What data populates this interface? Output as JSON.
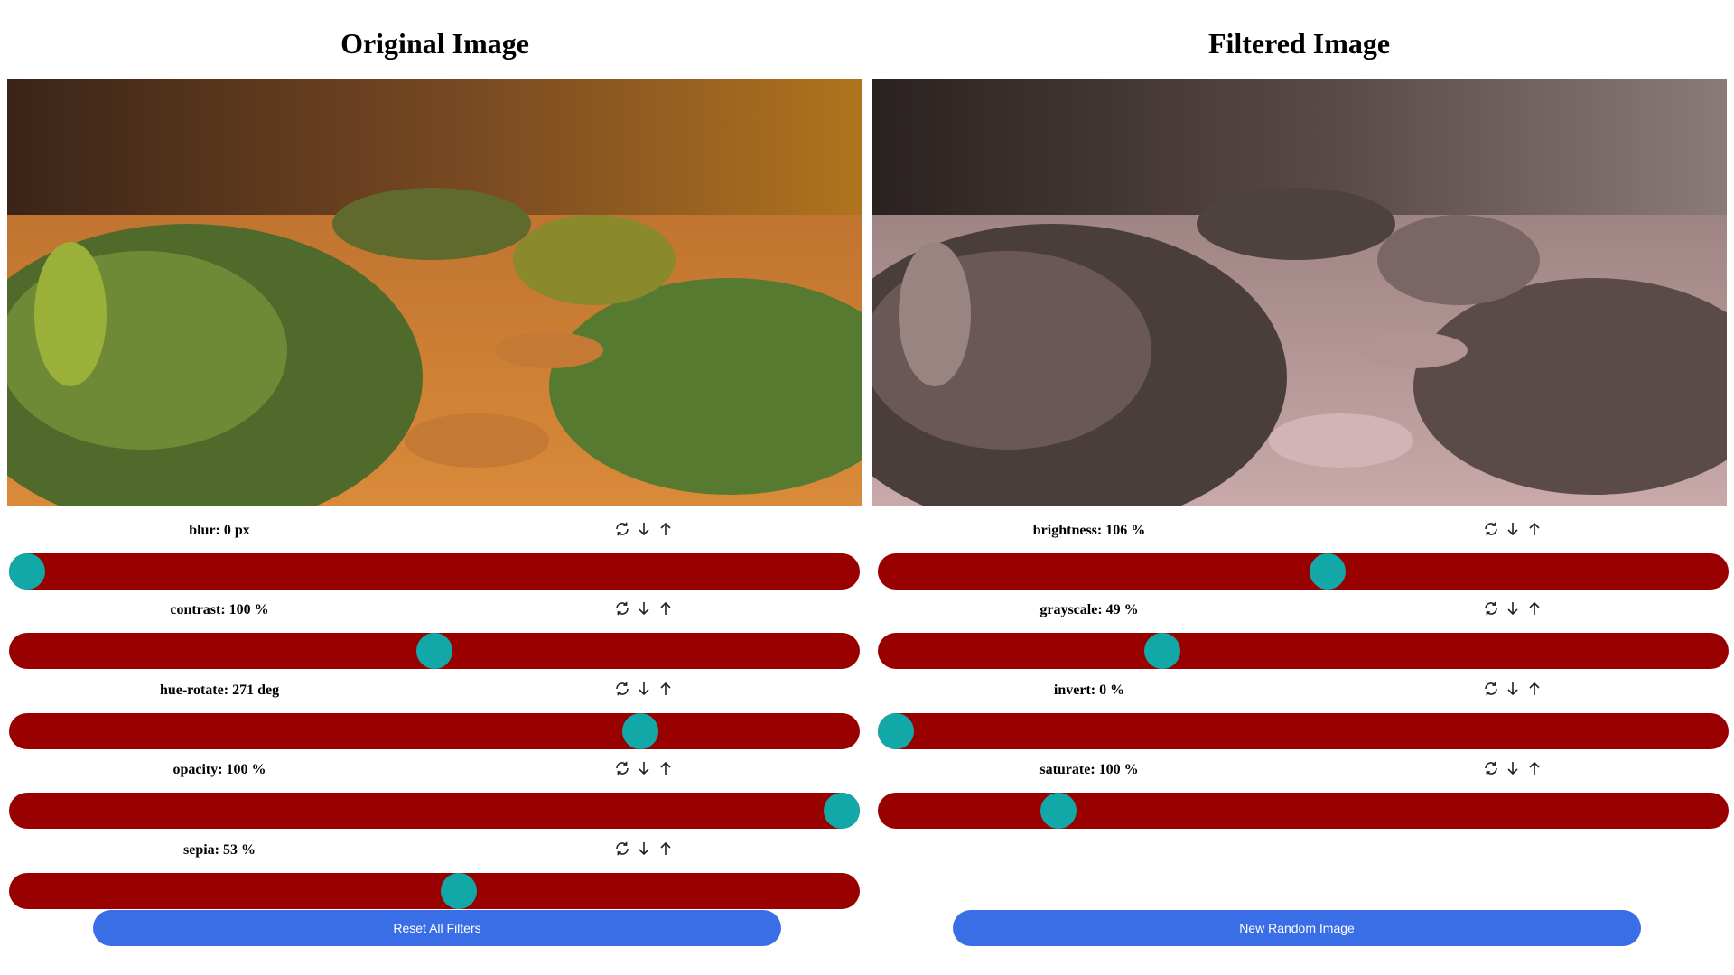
{
  "left": {
    "title": "Original Image",
    "controls": [
      {
        "name": "blur",
        "text": "blur: 0 px",
        "value": 0,
        "min": 0,
        "max": 20
      },
      {
        "name": "contrast",
        "text": "contrast: 100 %",
        "value": 100,
        "min": 0,
        "max": 200
      },
      {
        "name": "hue-rotate",
        "text": "hue-rotate: 271 deg",
        "value": 271,
        "min": 0,
        "max": 360
      },
      {
        "name": "opacity",
        "text": "opacity: 100 %",
        "value": 100,
        "min": 0,
        "max": 100
      },
      {
        "name": "sepia",
        "text": "sepia: 53 %",
        "value": 53,
        "min": 0,
        "max": 100
      }
    ],
    "button_label": "Reset All Filters"
  },
  "right": {
    "title": "Filtered Image",
    "controls": [
      {
        "name": "brightness",
        "text": "brightness: 106 %",
        "value": 106,
        "min": 0,
        "max": 200
      },
      {
        "name": "grayscale",
        "text": "grayscale: 49 %",
        "value": 49,
        "min": 0,
        "max": 150
      },
      {
        "name": "invert",
        "text": "invert: 0 %",
        "value": 0,
        "min": 0,
        "max": 100
      },
      {
        "name": "saturate",
        "text": "saturate: 100 %",
        "value": 100,
        "min": 0,
        "max": 500
      }
    ],
    "button_label": "New Random Image"
  },
  "icons": [
    "reset-icon",
    "arrow-down-icon",
    "arrow-up-icon"
  ],
  "colors": {
    "track": "#990000",
    "thumb": "#12a8a8",
    "button": "#3a6ee6"
  }
}
